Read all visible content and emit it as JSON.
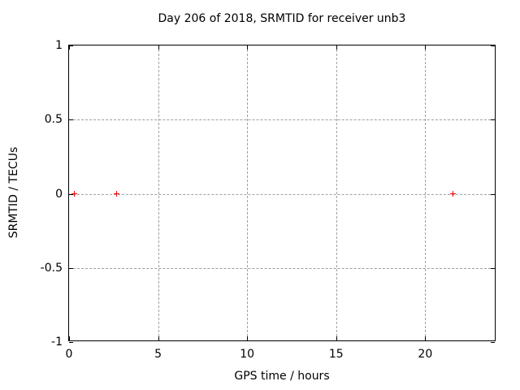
{
  "chart_data": {
    "type": "scatter",
    "title": "Day 206 of 2018, SRMTID for receiver unb3",
    "xlabel": "GPS time / hours",
    "ylabel": "SRMTID / TECUs",
    "xlim": [
      0,
      24
    ],
    "ylim": [
      -1,
      1
    ],
    "xticks": [
      0,
      5,
      10,
      15,
      20
    ],
    "xtick_labels": [
      "0",
      "5",
      "10",
      "15",
      "20"
    ],
    "yticks": [
      1,
      0.5,
      0,
      -0.5,
      -1
    ],
    "ytick_labels": [
      "1",
      "0.5",
      "0",
      "-0.5",
      "-1"
    ],
    "grid": true,
    "grid_color": "#a0a0a0",
    "border_color": "#000000",
    "background_color": "#ffffff",
    "legend_position": "none",
    "series": [
      {
        "name": "SRMTID",
        "marker": "plus",
        "color": "#ff0000",
        "x": [
          0.3,
          2.7,
          21.6
        ],
        "y": [
          0,
          0,
          0
        ]
      }
    ]
  }
}
